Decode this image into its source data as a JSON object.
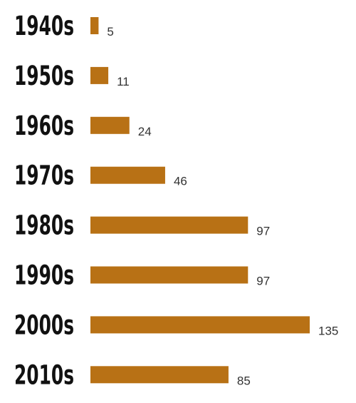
{
  "chart_data": {
    "type": "bar",
    "orientation": "horizontal",
    "title": "",
    "xlabel": "",
    "ylabel": "",
    "grid": false,
    "categories": [
      "1940s",
      "1950s",
      "1960s",
      "1970s",
      "1980s",
      "1990s",
      "2000s",
      "2010s"
    ],
    "values": [
      5,
      11,
      24,
      46,
      97,
      97,
      135,
      85
    ],
    "value_labels": [
      "5",
      "11",
      "24",
      "46",
      "97",
      "97",
      "135",
      "85"
    ],
    "xlim": [
      0,
      135
    ],
    "bar_color": "#b87115",
    "label_color": "#111111",
    "value_color": "#333333"
  }
}
